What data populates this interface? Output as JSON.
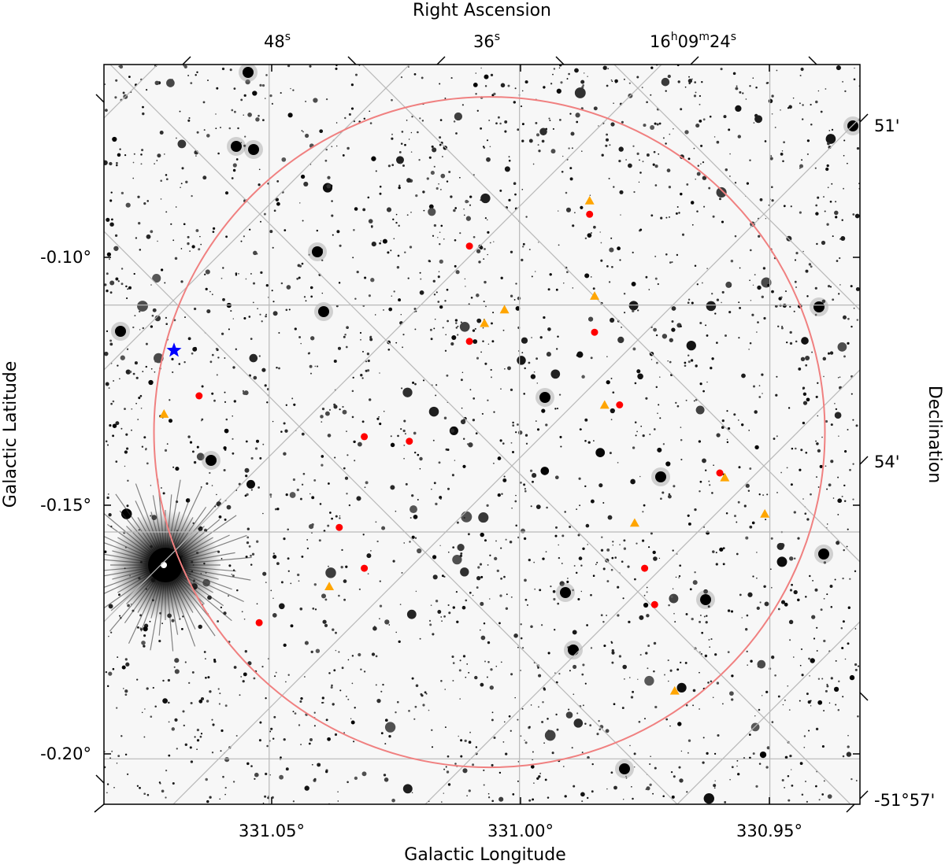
{
  "axes": {
    "top_label": "Right Ascension",
    "bottom_label": "Galactic Longitude",
    "left_label": "Galactic Latitude",
    "right_label": "Declination"
  },
  "ticks": {
    "bottom": [
      "331.05°",
      "331.00°",
      "330.95°"
    ],
    "left": [
      "-0.10°",
      "-0.15°",
      "-0.20°"
    ],
    "top_ra": [
      {
        "main": "48",
        "sup": "s"
      },
      {
        "main": "36",
        "sup": "s"
      },
      {
        "main": "16",
        "sup": "h",
        "main2": "09",
        "sup2": "m",
        "main3": "24",
        "sup3": "s"
      }
    ],
    "right": [
      "51'",
      "54'",
      "-51°57'"
    ]
  },
  "chart_data": {
    "type": "scatter",
    "xlabel": "Galactic Longitude",
    "ylabel": "Galactic Latitude",
    "xlim": [
      331.083,
      330.932
    ],
    "ylim": [
      -0.21,
      -0.047
    ],
    "grid": true,
    "region_circle": {
      "center_l": 331.006,
      "center_b": -0.128,
      "radius_deg": 0.067,
      "color": "#f08080"
    },
    "series": [
      {
        "marker": "circle",
        "color": "#ff0000",
        "points": [
          [
            330.986,
            -0.08
          ],
          [
            331.01,
            -0.087
          ],
          [
            330.985,
            -0.106
          ],
          [
            331.01,
            -0.108
          ],
          [
            330.98,
            -0.122
          ],
          [
            331.064,
            -0.12
          ],
          [
            331.031,
            -0.129
          ],
          [
            331.022,
            -0.13
          ],
          [
            330.96,
            -0.137
          ],
          [
            331.036,
            -0.149
          ],
          [
            330.975,
            -0.158
          ],
          [
            331.031,
            -0.158
          ],
          [
            330.973,
            -0.166
          ],
          [
            331.052,
            -0.17
          ]
        ]
      },
      {
        "marker": "triangle",
        "color": "#ffa500",
        "points": [
          [
            330.986,
            -0.077
          ],
          [
            330.985,
            -0.098
          ],
          [
            331.003,
            -0.101
          ],
          [
            331.007,
            -0.104
          ],
          [
            330.983,
            -0.122
          ],
          [
            331.071,
            -0.124
          ],
          [
            330.959,
            -0.138
          ],
          [
            330.951,
            -0.146
          ],
          [
            330.977,
            -0.148
          ],
          [
            331.038,
            -0.162
          ],
          [
            330.969,
            -0.185
          ]
        ]
      },
      {
        "marker": "star",
        "color": "#0000ff",
        "points": [
          [
            331.069,
            -0.11
          ]
        ]
      }
    ]
  }
}
